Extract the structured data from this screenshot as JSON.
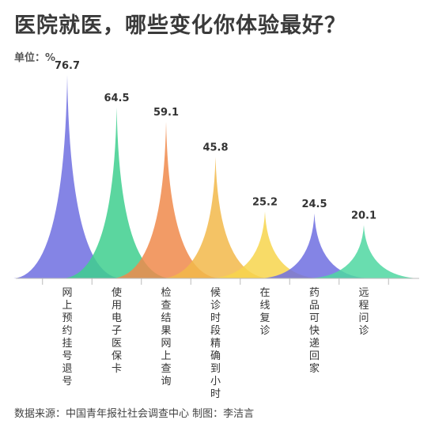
{
  "title": "医院就医，哪些变化你体验最好？",
  "unit": "单位：%",
  "source": "数据来源：中国青年报社社会调查中心  制图：李洁言",
  "chart_data": {
    "type": "area",
    "categories": [
      "网上预约挂号退号",
      "使用电子医保卡",
      "检查结果网上查询",
      "候诊时段精确到小时",
      "在线复诊",
      "药品可快递回家",
      "远程问诊"
    ],
    "values": [
      76.7,
      64.5,
      59.1,
      45.8,
      25.2,
      24.5,
      20.1
    ],
    "value_labels": [
      "76.7",
      "64.5",
      "59.1",
      "45.8",
      "25.2",
      "24.5",
      "20.1"
    ],
    "unit": "%",
    "ylim": [
      0,
      80
    ],
    "grid": false,
    "legend": "none",
    "colors": [
      "#6e6fe0",
      "#3ecf8e",
      "#f08a4b",
      "#f2b84a",
      "#f7d54c",
      "#6e6fe0",
      "#4fd7a1"
    ]
  }
}
